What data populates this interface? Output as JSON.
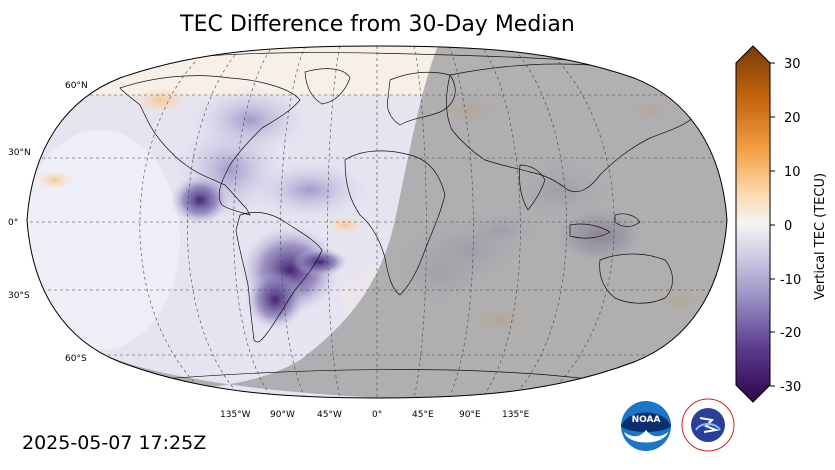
{
  "title": "TEC Difference from 30-Day Median",
  "timestamp": "2025-05-07 17:25Z",
  "lat_labels": [
    "60°N",
    "30°N",
    "0°",
    "30°S",
    "60°S"
  ],
  "lon_labels": [
    "135°W",
    "90°W",
    "45°W",
    "0°",
    "45°E",
    "90°E",
    "135°E"
  ],
  "colorbar": {
    "label": "Vertical TEC (TECU)",
    "ticks": [
      "30",
      "20",
      "10",
      "0",
      "-10",
      "-20",
      "-30"
    ],
    "range": [
      -30,
      30
    ],
    "colors": {
      "high": "#7a3b06",
      "mid_high": "#f5a34a",
      "zero": "#f4f4f4",
      "mid_low": "#9c95c6",
      "low": "#2d0548"
    }
  },
  "logos": {
    "noaa": "NOAA",
    "nws": "NATIONAL WEATHER SERVICE"
  },
  "night_shade_color": "#a8a8a8"
}
